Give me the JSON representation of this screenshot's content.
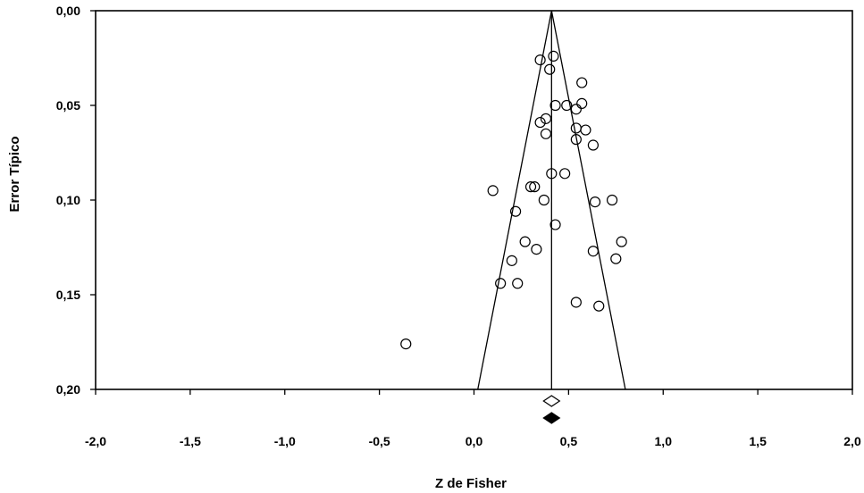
{
  "chart_data": {
    "type": "scatter",
    "title": "",
    "xlabel": "Z de Fisher",
    "ylabel": "Error Típico",
    "xlim": [
      -2.0,
      2.0
    ],
    "ylim": [
      0.0,
      0.2
    ],
    "y_inverted": true,
    "grid": false,
    "x_ticks": [
      {
        "value": -2.0,
        "label": "-2,0"
      },
      {
        "value": -1.5,
        "label": "-1,5"
      },
      {
        "value": -1.0,
        "label": "-1,0"
      },
      {
        "value": -0.5,
        "label": "-0,5"
      },
      {
        "value": 0.0,
        "label": "0,0"
      },
      {
        "value": 0.5,
        "label": "0,5"
      },
      {
        "value": 1.0,
        "label": "1,0"
      },
      {
        "value": 1.5,
        "label": "1,5"
      },
      {
        "value": 2.0,
        "label": "2,0"
      }
    ],
    "y_ticks": [
      {
        "value": 0.0,
        "label": "0,00"
      },
      {
        "value": 0.05,
        "label": "0,05"
      },
      {
        "value": 0.1,
        "label": "0,10"
      },
      {
        "value": 0.15,
        "label": "0,15"
      },
      {
        "value": 0.2,
        "label": "0,20"
      }
    ],
    "pooled_effect": 0.41,
    "funnel": {
      "apex": [
        0.41,
        0.0
      ],
      "base_left": [
        0.02,
        0.2
      ],
      "base_right": [
        0.8,
        0.2
      ]
    },
    "points": [
      {
        "x": 0.35,
        "y": 0.026
      },
      {
        "x": 0.42,
        "y": 0.024
      },
      {
        "x": 0.4,
        "y": 0.031
      },
      {
        "x": 0.57,
        "y": 0.038
      },
      {
        "x": 0.43,
        "y": 0.05
      },
      {
        "x": 0.49,
        "y": 0.05
      },
      {
        "x": 0.54,
        "y": 0.052
      },
      {
        "x": 0.57,
        "y": 0.049
      },
      {
        "x": 0.38,
        "y": 0.057
      },
      {
        "x": 0.35,
        "y": 0.059
      },
      {
        "x": 0.54,
        "y": 0.062
      },
      {
        "x": 0.59,
        "y": 0.063
      },
      {
        "x": 0.38,
        "y": 0.065
      },
      {
        "x": 0.54,
        "y": 0.068
      },
      {
        "x": 0.63,
        "y": 0.071
      },
      {
        "x": 0.41,
        "y": 0.086
      },
      {
        "x": 0.48,
        "y": 0.086
      },
      {
        "x": 0.1,
        "y": 0.095
      },
      {
        "x": 0.3,
        "y": 0.093
      },
      {
        "x": 0.32,
        "y": 0.093
      },
      {
        "x": 0.37,
        "y": 0.1
      },
      {
        "x": 0.64,
        "y": 0.101
      },
      {
        "x": 0.73,
        "y": 0.1
      },
      {
        "x": 0.22,
        "y": 0.106
      },
      {
        "x": 0.43,
        "y": 0.113
      },
      {
        "x": 0.27,
        "y": 0.122
      },
      {
        "x": 0.33,
        "y": 0.126
      },
      {
        "x": 0.78,
        "y": 0.122
      },
      {
        "x": 0.63,
        "y": 0.127
      },
      {
        "x": 0.75,
        "y": 0.131
      },
      {
        "x": 0.2,
        "y": 0.132
      },
      {
        "x": 0.14,
        "y": 0.144
      },
      {
        "x": 0.23,
        "y": 0.144
      },
      {
        "x": 0.54,
        "y": 0.154
      },
      {
        "x": 0.66,
        "y": 0.156
      },
      {
        "x": -0.36,
        "y": 0.176
      }
    ],
    "summary_markers": [
      {
        "kind": "observed",
        "style": "open",
        "x": 0.41
      },
      {
        "kind": "imputed",
        "style": "filled",
        "x": 0.41
      }
    ]
  }
}
